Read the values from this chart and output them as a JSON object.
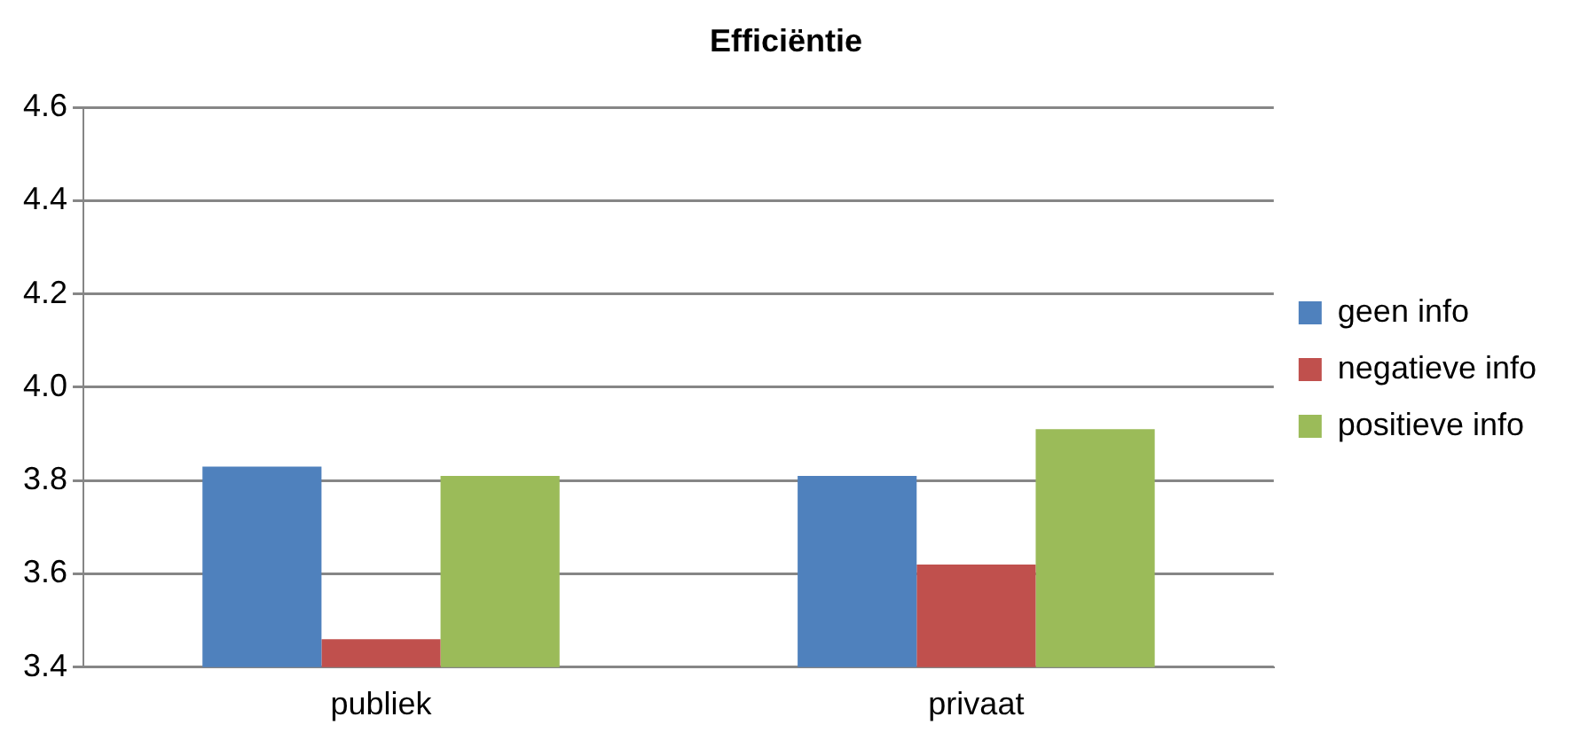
{
  "chart_data": {
    "type": "bar",
    "title": "Efficiëntie",
    "categories": [
      "publiek",
      "privaat"
    ],
    "series": [
      {
        "name": "geen info",
        "color": "#4f81bd",
        "values": [
          3.83,
          3.81
        ]
      },
      {
        "name": "negatieve info",
        "color": "#c0504d",
        "values": [
          3.46,
          3.62
        ]
      },
      {
        "name": "positieve info",
        "color": "#9bbb59",
        "values": [
          3.81,
          3.91
        ]
      }
    ],
    "ylim": [
      3.4,
      4.6
    ],
    "yticks": [
      {
        "value": 3.4,
        "label": "3.4"
      },
      {
        "value": 3.6,
        "label": "3.6"
      },
      {
        "value": 3.8,
        "label": "3.8"
      },
      {
        "value": 4.0,
        "label": "4.0"
      },
      {
        "value": 4.2,
        "label": "4.2"
      },
      {
        "value": 4.4,
        "label": "4.4"
      },
      {
        "value": 4.6,
        "label": "4.6"
      }
    ],
    "grid": "y",
    "legend": "right"
  }
}
